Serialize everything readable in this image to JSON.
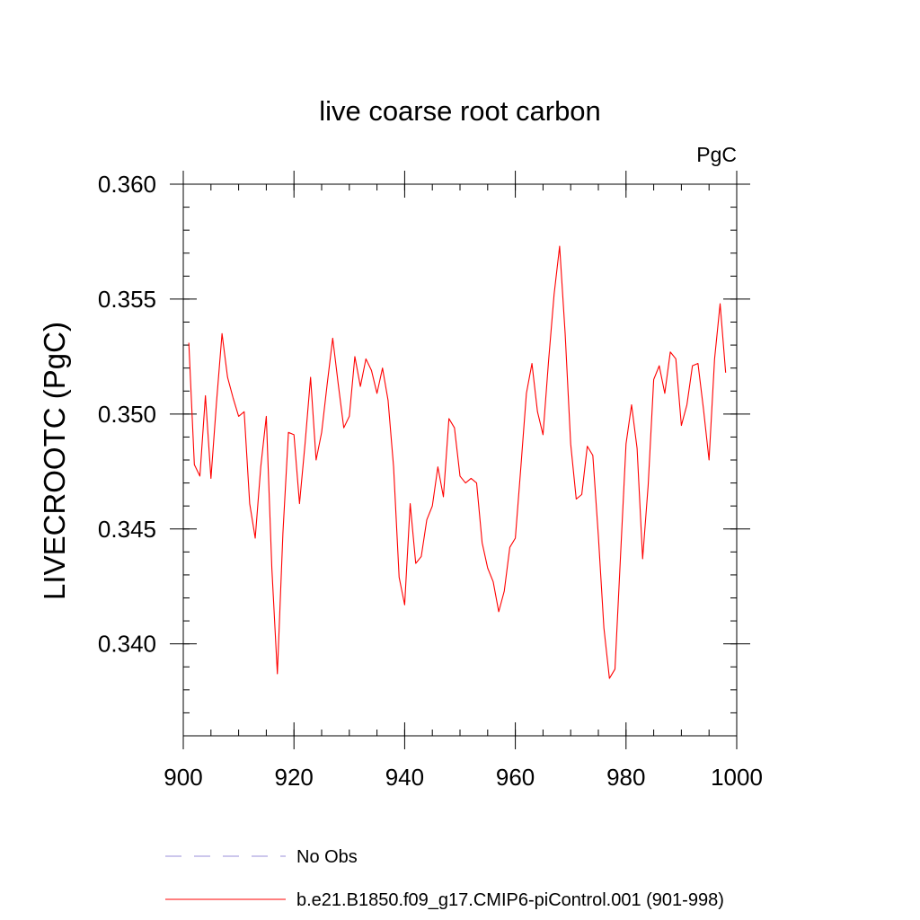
{
  "chart_data": {
    "type": "line",
    "title": "live coarse root carbon",
    "units_label": "PgC",
    "ylabel": "LIVECROOTC  (PgC)",
    "xlabel": "",
    "xlim": [
      900,
      1000
    ],
    "ylim": [
      0.336,
      0.36
    ],
    "x_major_ticks": [
      900,
      920,
      940,
      960,
      980,
      1000
    ],
    "x_tick_labels": [
      "900",
      "920",
      "940",
      "960",
      "980",
      "1000"
    ],
    "x_minor_step": 5,
    "y_major_ticks": [
      0.34,
      0.345,
      0.35,
      0.355,
      0.36
    ],
    "y_tick_labels": [
      "0.340",
      "0.345",
      "0.350",
      "0.355",
      "0.360"
    ],
    "y_minor_step": 0.001,
    "grid": false,
    "legend_position": "bottom-left",
    "series": [
      {
        "name": "No Obs",
        "color": "#9a8fd8",
        "dash": "dashed",
        "x": [],
        "values": []
      },
      {
        "name": "b.e21.B1850.f09_g17.CMIP6-piControl.001 (901-998)",
        "color": "#ff0000",
        "dash": "solid",
        "x": [
          901,
          902,
          903,
          904,
          905,
          906,
          907,
          908,
          909,
          910,
          911,
          912,
          913,
          914,
          915,
          916,
          917,
          918,
          919,
          920,
          921,
          922,
          923,
          924,
          925,
          926,
          927,
          928,
          929,
          930,
          931,
          932,
          933,
          934,
          935,
          936,
          937,
          938,
          939,
          940,
          941,
          942,
          943,
          944,
          945,
          946,
          947,
          948,
          949,
          950,
          951,
          952,
          953,
          954,
          955,
          956,
          957,
          958,
          959,
          960,
          961,
          962,
          963,
          964,
          965,
          966,
          967,
          968,
          969,
          970,
          971,
          972,
          973,
          974,
          975,
          976,
          977,
          978,
          979,
          980,
          981,
          982,
          983,
          984,
          985,
          986,
          987,
          988,
          989,
          990,
          991,
          992,
          993,
          994,
          995,
          996,
          997,
          998
        ],
        "values": [
          0.3531,
          0.3478,
          0.3473,
          0.3508,
          0.3472,
          0.3505,
          0.3535,
          0.3516,
          0.3507,
          0.3499,
          0.3501,
          0.3461,
          0.3446,
          0.3477,
          0.3499,
          0.3433,
          0.3387,
          0.3448,
          0.3492,
          0.3491,
          0.3461,
          0.3487,
          0.3516,
          0.348,
          0.3492,
          0.3513,
          0.3533,
          0.3513,
          0.3494,
          0.3499,
          0.3525,
          0.3512,
          0.3524,
          0.3519,
          0.3509,
          0.352,
          0.3506,
          0.3477,
          0.3429,
          0.3417,
          0.3461,
          0.3435,
          0.3438,
          0.3454,
          0.346,
          0.3477,
          0.3464,
          0.3498,
          0.3494,
          0.3473,
          0.347,
          0.3472,
          0.347,
          0.3444,
          0.3433,
          0.3427,
          0.3414,
          0.3423,
          0.3442,
          0.3446,
          0.3477,
          0.3509,
          0.3522,
          0.3501,
          0.3491,
          0.3523,
          0.3552,
          0.3573,
          0.3535,
          0.3487,
          0.3463,
          0.3465,
          0.3486,
          0.3482,
          0.3447,
          0.3407,
          0.3385,
          0.3389,
          0.3438,
          0.3487,
          0.3504,
          0.3485,
          0.3437,
          0.3469,
          0.3515,
          0.3521,
          0.3509,
          0.3527,
          0.3524,
          0.3495,
          0.3504,
          0.3521,
          0.3522,
          0.3502,
          0.348,
          0.3524,
          0.3548,
          0.3518
        ]
      }
    ]
  }
}
